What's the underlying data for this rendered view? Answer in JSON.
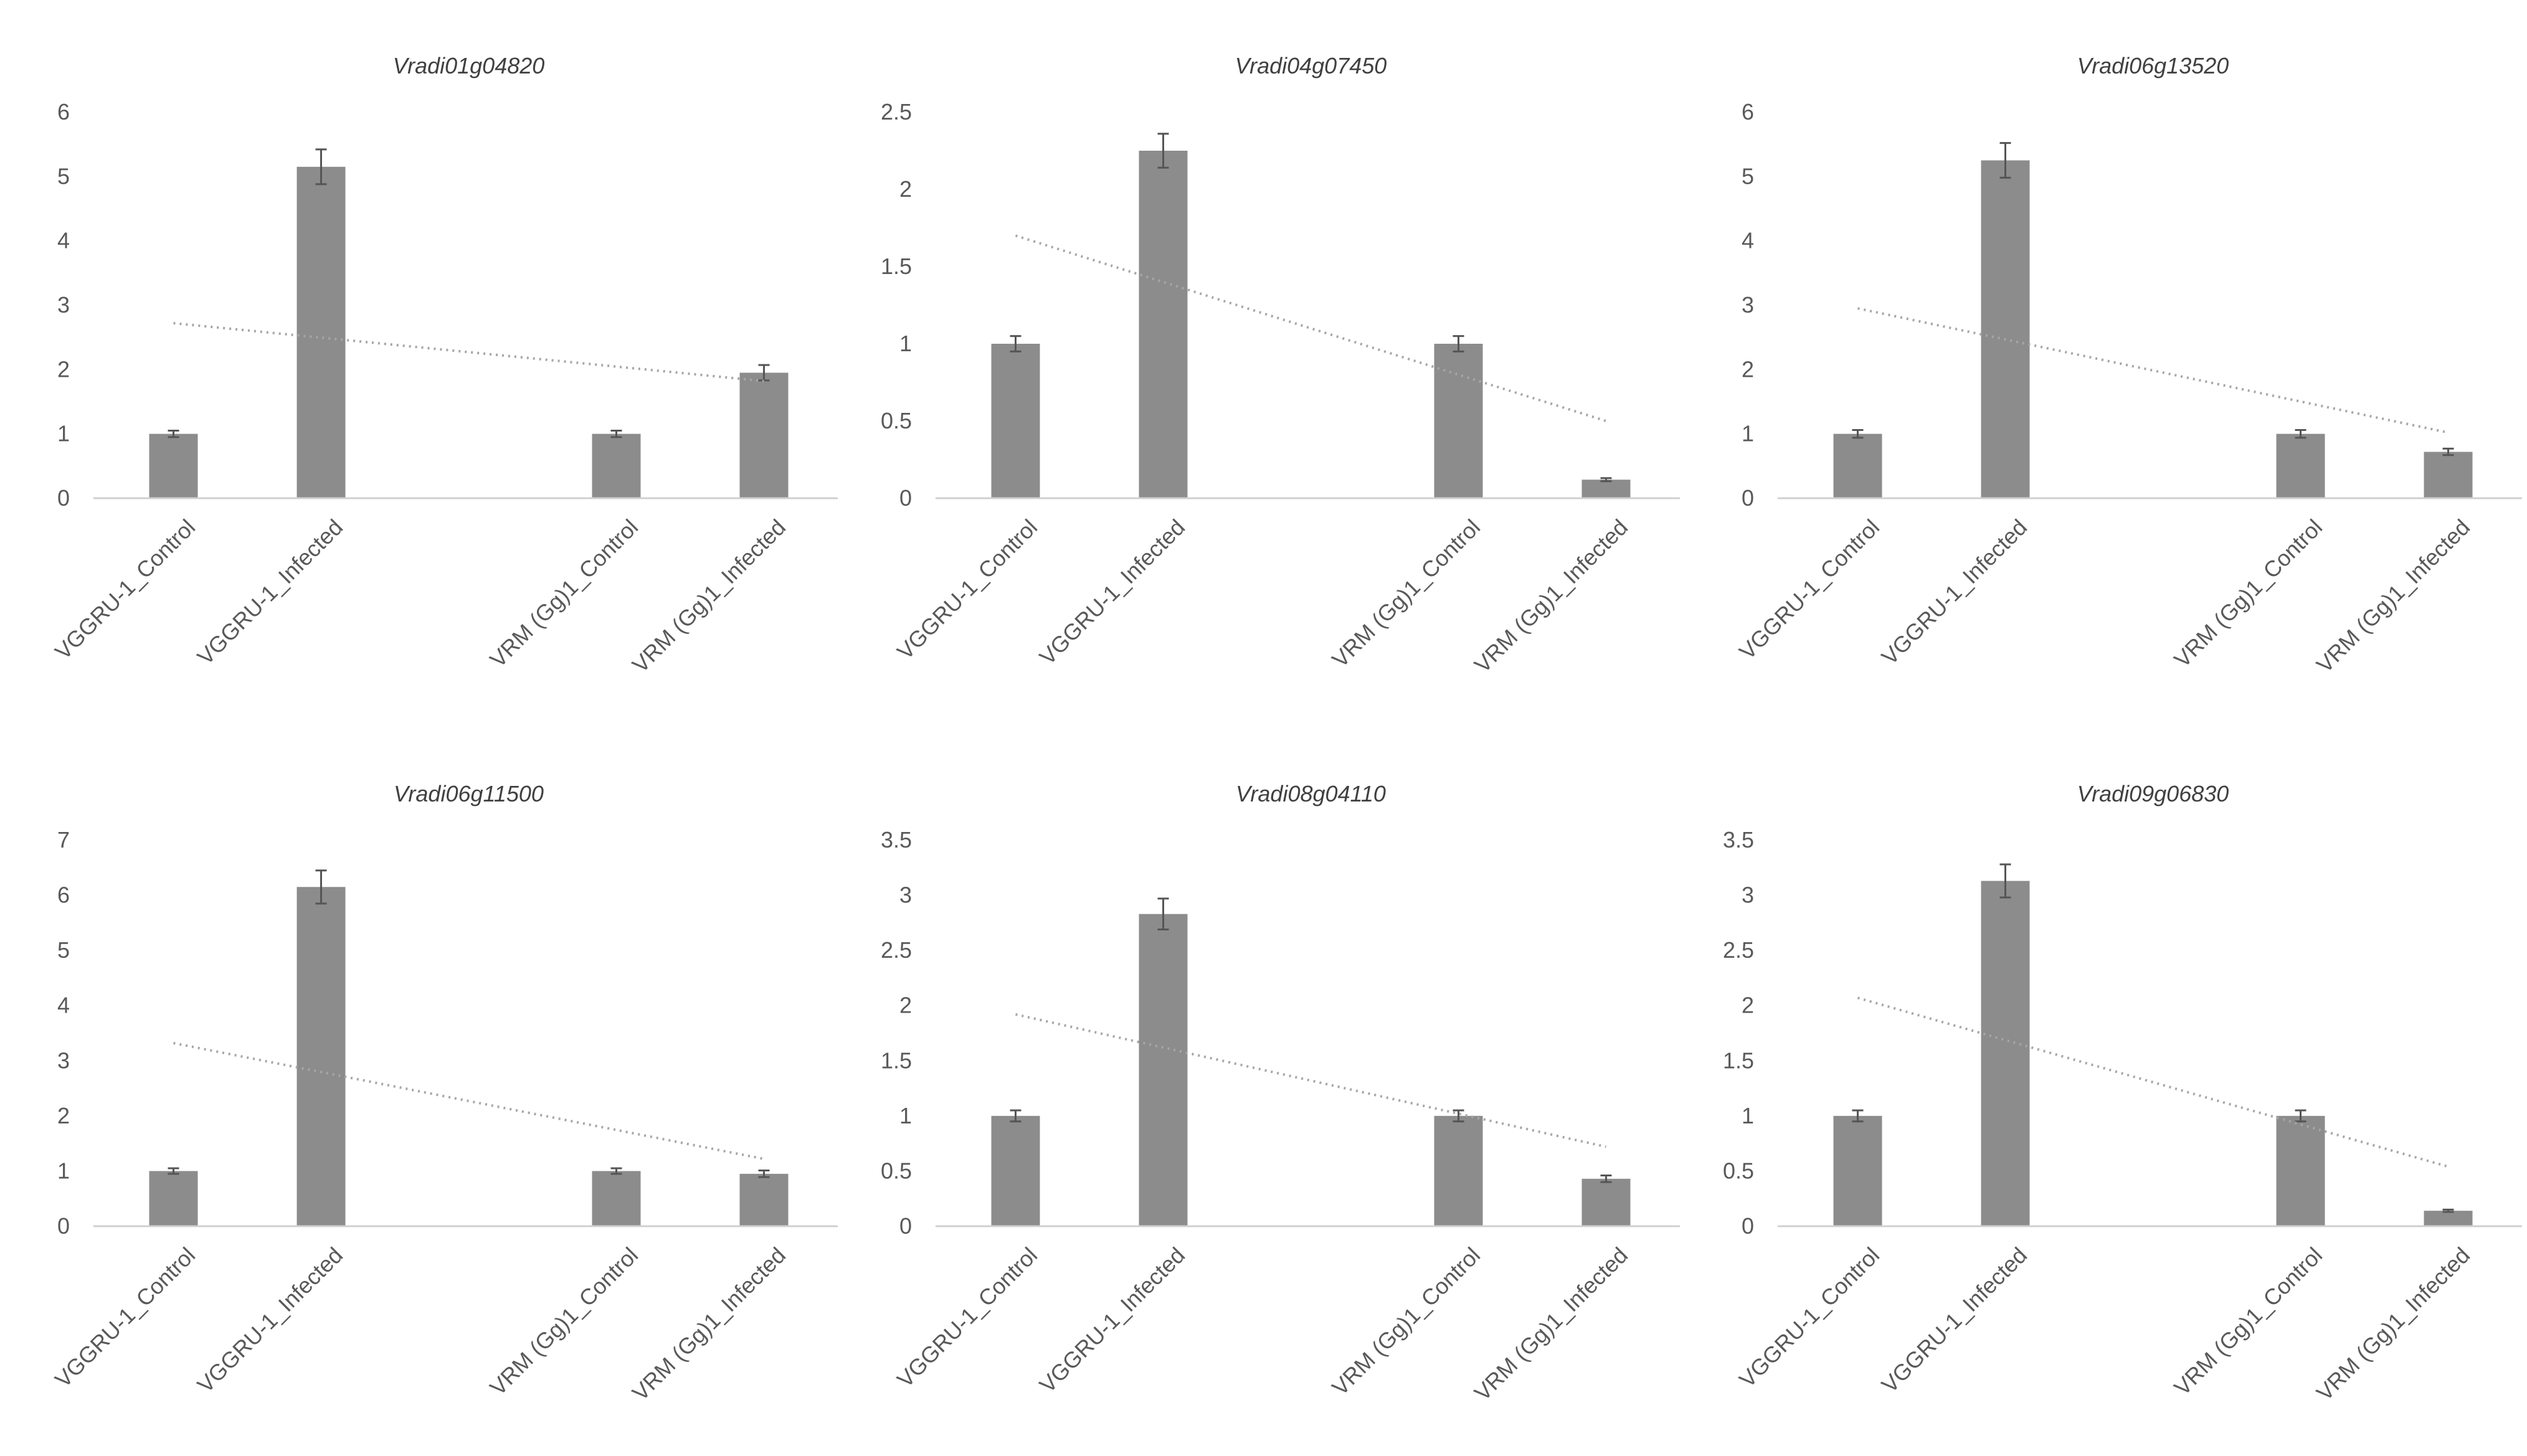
{
  "chart_data": [
    {
      "type": "bar",
      "title": "Vradi01g04820",
      "categories": [
        "VGGRU-1_Control",
        "VGGRU-1_Infected",
        "",
        "VRM (Gg)1_Control",
        "VRM (Gg)1_Infected"
      ],
      "values": [
        1.0,
        5.15,
        null,
        1.0,
        1.95
      ],
      "errors": [
        0.05,
        0.27,
        null,
        0.05,
        0.12
      ],
      "ylim": [
        0,
        6
      ],
      "yticks": [
        0,
        1,
        2,
        3,
        4,
        5,
        6
      ],
      "trendline": {
        "type": "linear",
        "dotted": true,
        "start": 2.72,
        "end": 1.82
      },
      "xlabel": "",
      "ylabel": "",
      "grid": false
    },
    {
      "type": "bar",
      "title": "Vradi04g07450",
      "categories": [
        "VGGRU-1_Control",
        "VGGRU-1_Infected",
        "",
        "VRM (Gg)1_Control",
        "VRM (Gg)1_Infected"
      ],
      "values": [
        1.0,
        2.25,
        null,
        1.0,
        0.12
      ],
      "errors": [
        0.05,
        0.11,
        null,
        0.05,
        0.01
      ],
      "ylim": [
        0,
        2.5
      ],
      "yticks": [
        0,
        0.5,
        1,
        1.5,
        2,
        2.5
      ],
      "trendline": {
        "type": "linear",
        "dotted": true,
        "start": 1.7,
        "end": 0.5
      },
      "xlabel": "",
      "ylabel": "",
      "grid": false
    },
    {
      "type": "bar",
      "title": "Vradi06g13520",
      "categories": [
        "VGGRU-1_Control",
        "VGGRU-1_Infected",
        "",
        "VRM (Gg)1_Control",
        "VRM (Gg)1_Infected"
      ],
      "values": [
        1.0,
        5.25,
        null,
        1.0,
        0.72
      ],
      "errors": [
        0.06,
        0.27,
        null,
        0.06,
        0.05
      ],
      "ylim": [
        0,
        6
      ],
      "yticks": [
        0,
        1,
        2,
        3,
        4,
        5,
        6
      ],
      "trendline": {
        "type": "linear",
        "dotted": true,
        "start": 2.95,
        "end": 1.02
      },
      "xlabel": "",
      "ylabel": "",
      "grid": false
    },
    {
      "type": "bar",
      "title": "Vradi06g11500",
      "categories": [
        "VGGRU-1_Control",
        "VGGRU-1_Infected",
        "",
        "VRM (Gg)1_Control",
        "VRM (Gg)1_Infected"
      ],
      "values": [
        1.0,
        6.15,
        null,
        1.0,
        0.95
      ],
      "errors": [
        0.05,
        0.3,
        null,
        0.05,
        0.06
      ],
      "ylim": [
        0,
        7
      ],
      "yticks": [
        0,
        1,
        2,
        3,
        4,
        5,
        6,
        7
      ],
      "trendline": {
        "type": "linear",
        "dotted": true,
        "start": 3.32,
        "end": 1.22
      },
      "xlabel": "",
      "ylabel": "",
      "grid": false
    },
    {
      "type": "bar",
      "title": "Vradi08g04110",
      "categories": [
        "VGGRU-1_Control",
        "VGGRU-1_Infected",
        "",
        "VRM (Gg)1_Control",
        "VRM (Gg)1_Infected"
      ],
      "values": [
        1.0,
        2.83,
        null,
        1.0,
        0.43
      ],
      "errors": [
        0.05,
        0.14,
        null,
        0.05,
        0.03
      ],
      "ylim": [
        0,
        3.5
      ],
      "yticks": [
        0,
        0.5,
        1,
        1.5,
        2,
        2.5,
        3,
        3.5
      ],
      "trendline": {
        "type": "linear",
        "dotted": true,
        "start": 1.92,
        "end": 0.72
      },
      "xlabel": "",
      "ylabel": "",
      "grid": false
    },
    {
      "type": "bar",
      "title": "Vradi09g06830",
      "categories": [
        "VGGRU-1_Control",
        "VGGRU-1_Infected",
        "",
        "VRM (Gg)1_Control",
        "VRM (Gg)1_Infected"
      ],
      "values": [
        1.0,
        3.13,
        null,
        1.0,
        0.14
      ],
      "errors": [
        0.05,
        0.15,
        null,
        0.05,
        0.01
      ],
      "ylim": [
        0,
        3.5
      ],
      "yticks": [
        0,
        0.5,
        1,
        1.5,
        2,
        2.5,
        3,
        3.5
      ],
      "trendline": {
        "type": "linear",
        "dotted": true,
        "start": 2.07,
        "end": 0.54
      },
      "xlabel": "",
      "ylabel": "",
      "grid": false
    }
  ]
}
